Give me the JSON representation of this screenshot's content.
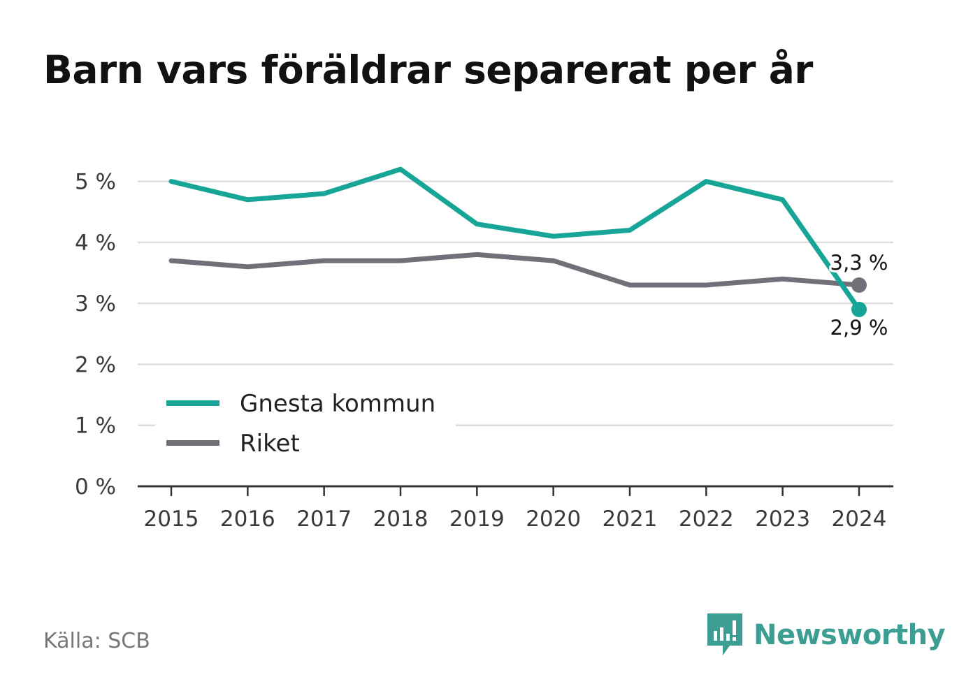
{
  "title": "Barn vars föräldrar separerat per år",
  "source": "Källa: SCB",
  "brand": {
    "name": "Newsworthy",
    "icon": "newsworthy-logo-icon",
    "color": "#3c9e93"
  },
  "chart_data": {
    "type": "line",
    "title": "Barn vars föräldrar separerat per år",
    "x": [
      "2015",
      "2016",
      "2017",
      "2018",
      "2019",
      "2020",
      "2021",
      "2022",
      "2023",
      "2024"
    ],
    "series": [
      {
        "name": "Gnesta kommun",
        "color": "#16a597",
        "values": [
          5.0,
          4.7,
          4.8,
          5.2,
          4.3,
          4.1,
          4.2,
          5.0,
          4.7,
          2.9
        ],
        "end_label": "2,9 %"
      },
      {
        "name": "Riket",
        "color": "#717078",
        "values": [
          3.7,
          3.6,
          3.7,
          3.7,
          3.8,
          3.7,
          3.3,
          3.3,
          3.4,
          3.3
        ],
        "end_label": "3,3 %"
      }
    ],
    "ylim": [
      0,
      5.5
    ],
    "yticks": [
      0,
      1,
      2,
      3,
      4,
      5
    ],
    "ytick_labels": [
      "0 %",
      "1 %",
      "2 %",
      "3 %",
      "4 %",
      "5 %"
    ],
    "grid": true,
    "legend": "bottom-left"
  }
}
